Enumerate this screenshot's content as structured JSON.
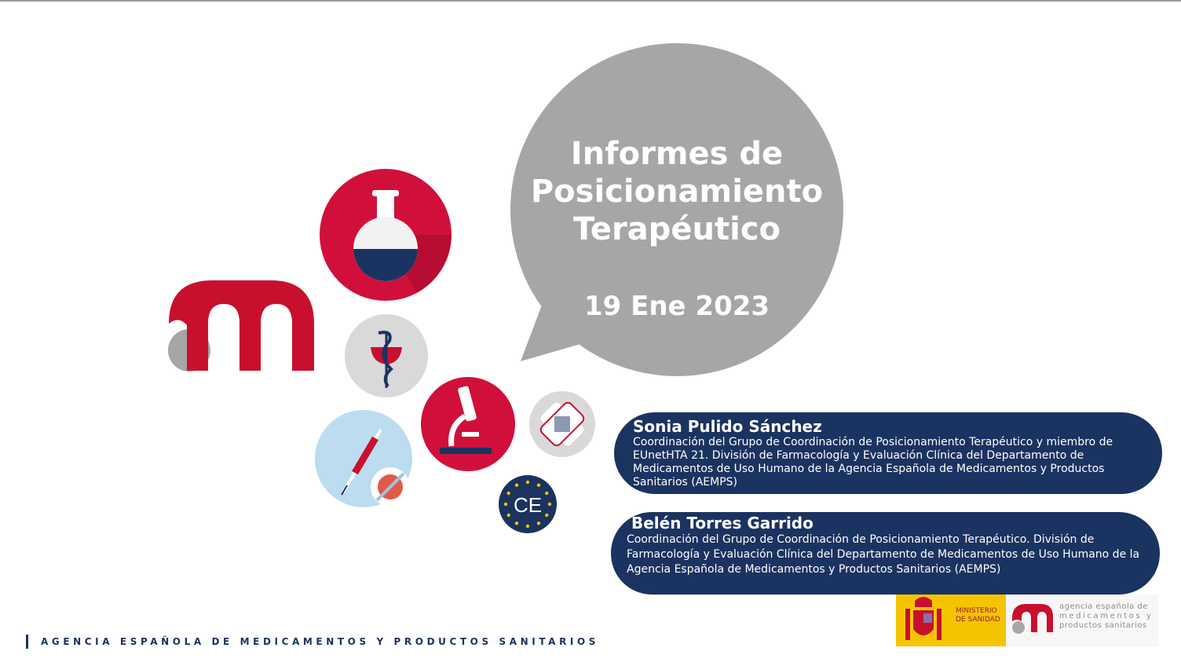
{
  "slide": {
    "title_lines": [
      "Informes de",
      "Posicionamiento",
      "Terapéutico"
    ],
    "date": "19 Ene 2023",
    "speakers": [
      {
        "name": "Sonia Pulido Sánchez",
        "description": "Coordinación del Grupo de Coordinación de Posicionamiento Terapéutico y miembro de EUnetHTA 21. División de Farmacología y Evaluación Clínica del Departamento de Medicamentos de Uso Humano de la Agencia Española de Medicamentos y Productos Sanitarios (AEMPS)"
      },
      {
        "name": "Belén Torres Garrido",
        "description": "Coordinación del Grupo de Coordinación de Posicionamiento Terapéutico. División de Farmacología y Evaluación Clínica del Departamento de Medicamentos de Uso Humano de la Agencia Española de Medicamentos y Productos Sanitarios (AEMPS)"
      }
    ],
    "footer": "AGENCIA ESPAÑOLA DE MEDICAMENTOS Y PRODUCTOS SANITARIOS",
    "logos": {
      "ministry": "MINISTERIO DE SANIDAD",
      "ministry_lines": [
        "MINISTERIO",
        "DE SANIDAD"
      ],
      "agency_lines": [
        "agencia española de",
        "medicamentos y",
        "productos sanitarios"
      ]
    },
    "icons": [
      "aemps-logo-icon",
      "flask-icon",
      "caduceus-icon",
      "microscope-icon",
      "syringe-virus-icon",
      "bandage-icon",
      "ce-mark-icon"
    ],
    "colors": {
      "red": "#d0103a",
      "navy": "#1b3360",
      "gray": "#a6a6a6",
      "lightblue": "#bcdcef"
    }
  }
}
